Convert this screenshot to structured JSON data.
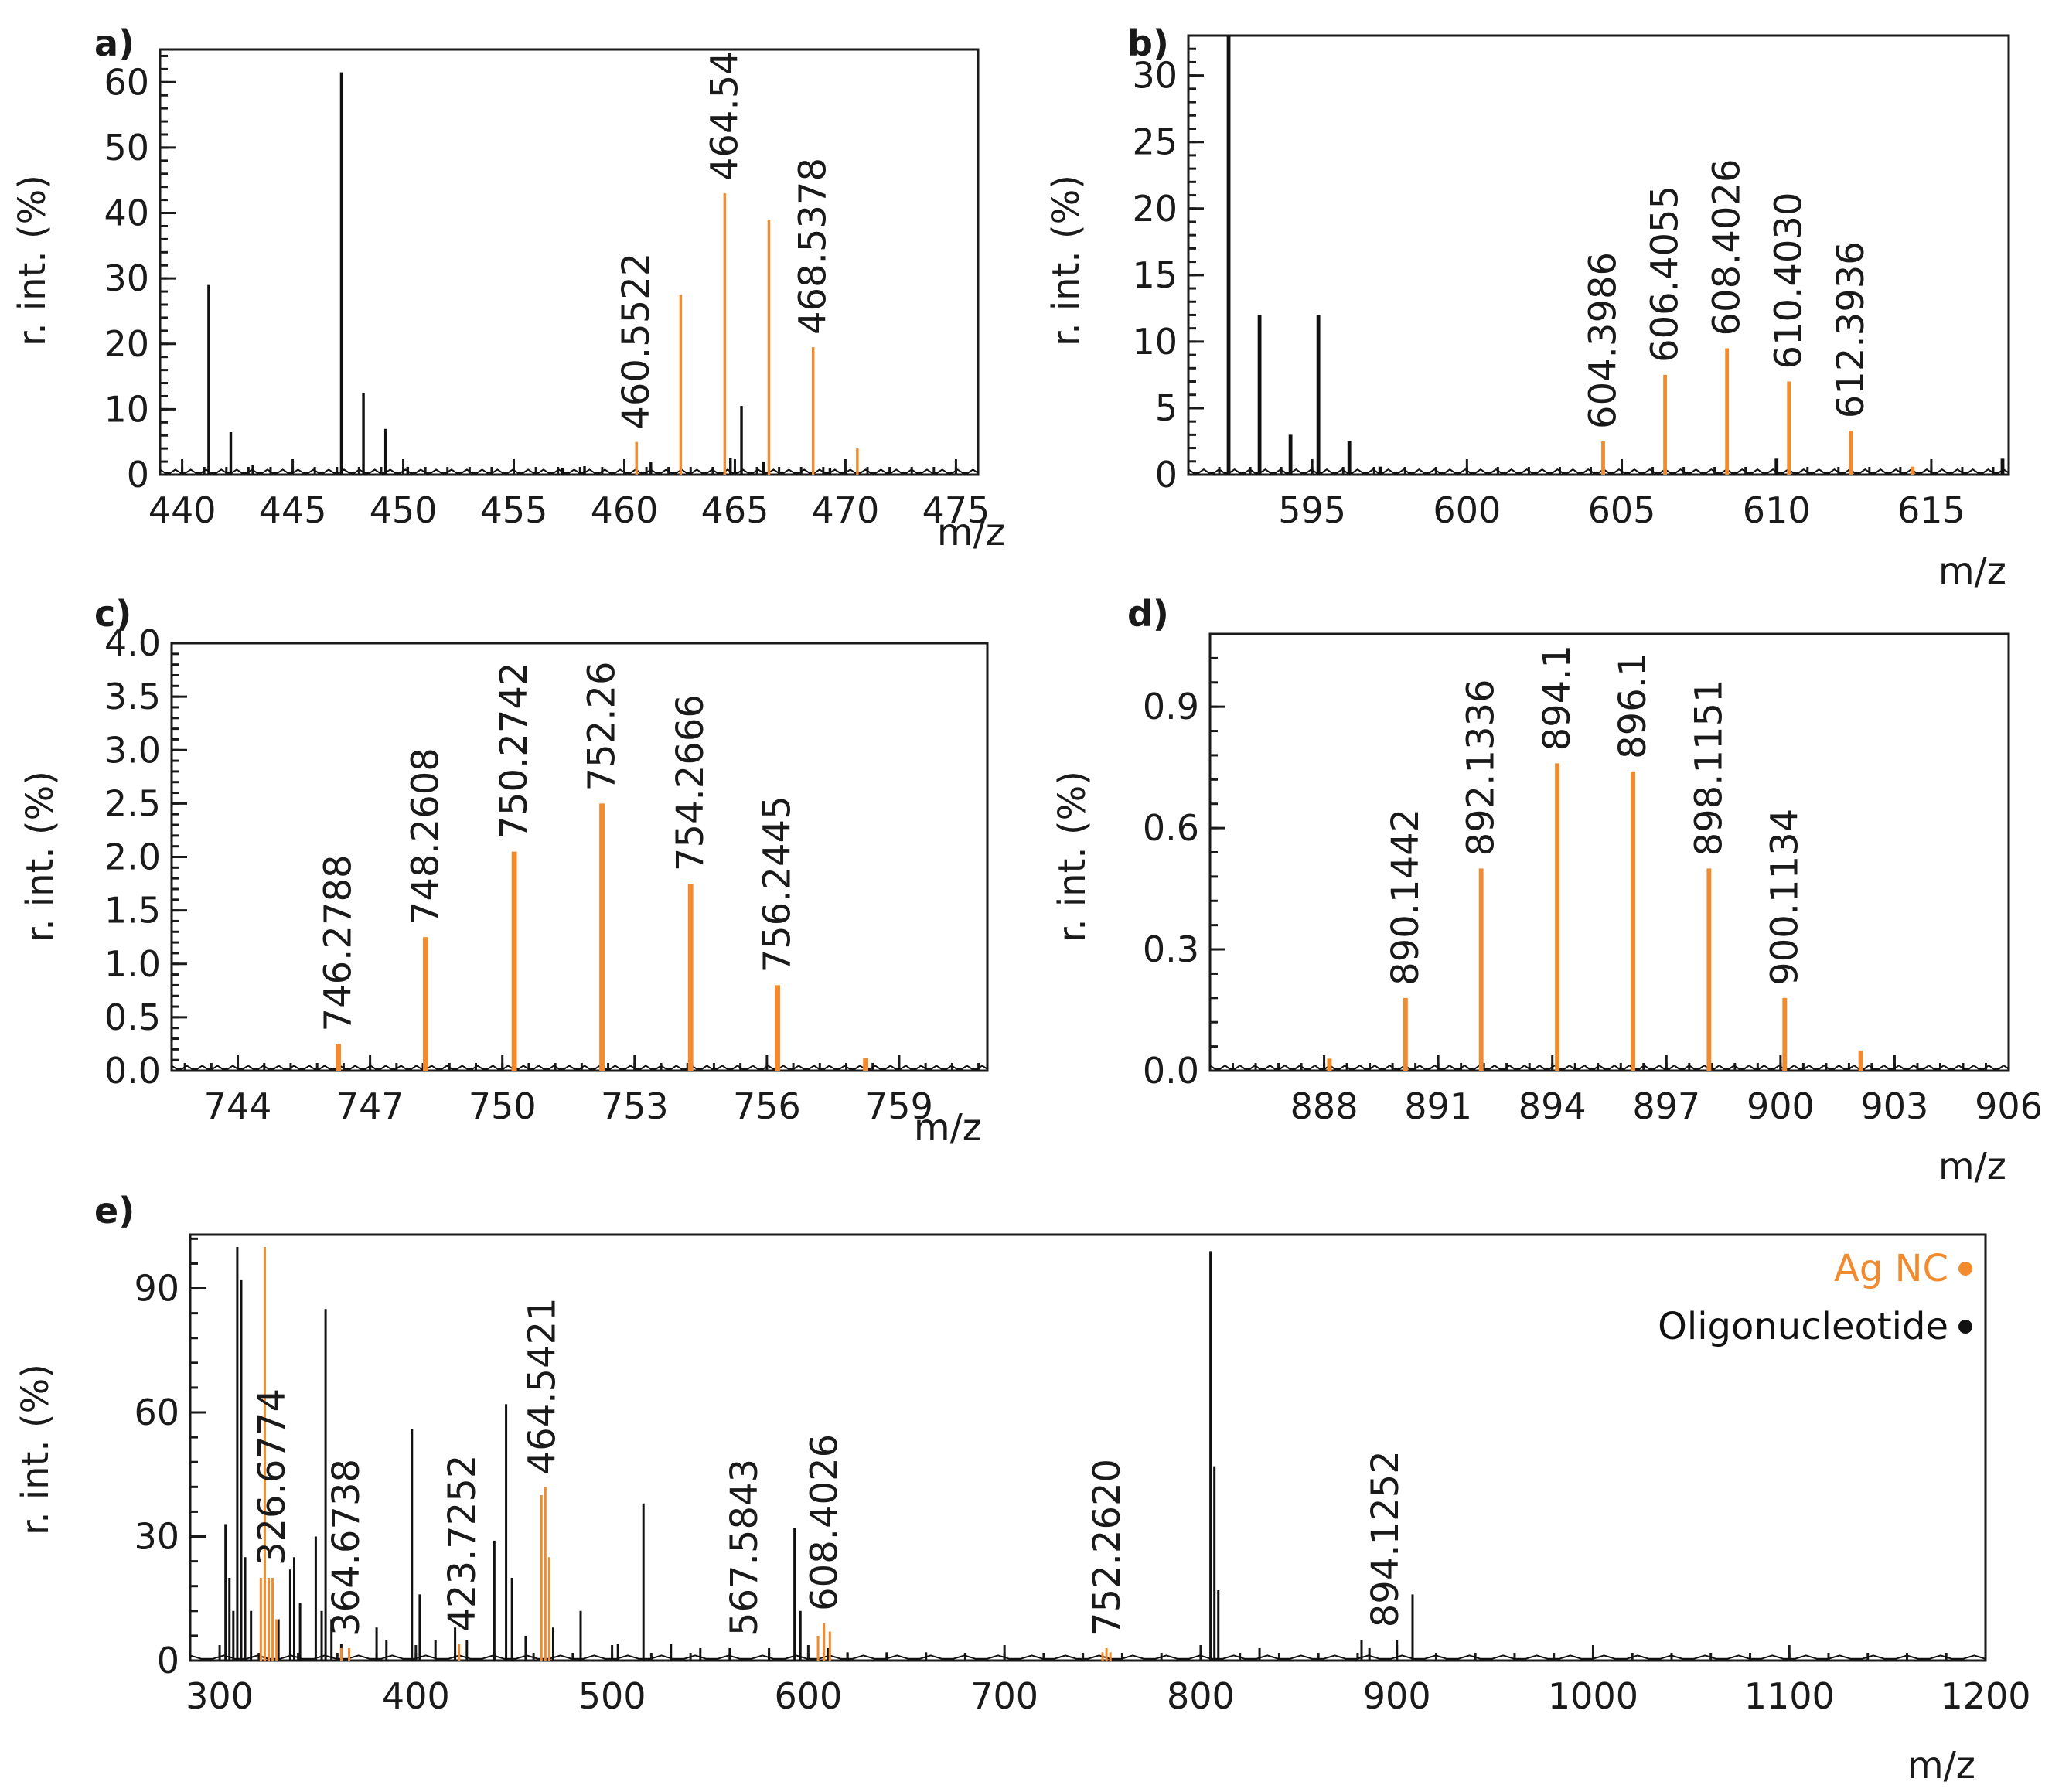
{
  "colors": {
    "ag": "#f28a2e",
    "oligo": "#111111",
    "axis": "#1a1a1a"
  },
  "chart_data": [
    {
      "type": "line",
      "panel_label": "a)",
      "ylabel": "r. int. (%)",
      "xlabel": "m/z",
      "xlim": [
        439,
        476
      ],
      "ylim": [
        0,
        65
      ],
      "xticks": [
        440,
        445,
        450,
        455,
        460,
        465,
        470,
        475
      ],
      "yticks": [
        0,
        10,
        20,
        30,
        40,
        50,
        60
      ],
      "series": [
        {
          "name": "Oligonucleotide",
          "color": "#111111",
          "peaks": [
            [
              441.2,
              29
            ],
            [
              442.2,
              6.5
            ],
            [
              443.2,
              1.5
            ],
            [
              447.2,
              61.5
            ],
            [
              448.2,
              12.5
            ],
            [
              449.2,
              7
            ],
            [
              450.2,
              1.2
            ],
            [
              457.2,
              1
            ],
            [
              458.2,
              1.3
            ],
            [
              461.2,
              2
            ],
            [
              464.8,
              2.5
            ],
            [
              465.3,
              10.5
            ],
            [
              466.3,
              2
            ],
            [
              469.3,
              1
            ]
          ]
        },
        {
          "name": "Ag NC",
          "color": "#f28a2e",
          "peaks": [
            [
              460.55,
              5
            ],
            [
              462.55,
              27.5
            ],
            [
              464.54,
              43
            ],
            [
              466.54,
              39
            ],
            [
              468.54,
              19.5
            ],
            [
              470.54,
              4
            ]
          ]
        }
      ],
      "peak_labels": [
        {
          "text": "460.5522",
          "x": 460.55,
          "y": 5
        },
        {
          "text": "464.54",
          "x": 464.54,
          "y": 43
        },
        {
          "text": "468.5378",
          "x": 468.54,
          "y": 19.5
        }
      ]
    },
    {
      "type": "line",
      "panel_label": "b)",
      "ylabel": "r. int. (%)",
      "xlabel": "m/z",
      "xlim": [
        591,
        617.5
      ],
      "ylim": [
        0,
        33
      ],
      "xticks": [
        595,
        600,
        605,
        610,
        615
      ],
      "yticks": [
        0,
        5,
        10,
        15,
        20,
        25,
        30
      ],
      "series": [
        {
          "name": "Oligonucleotide",
          "color": "#111111",
          "peaks": [
            [
              592.3,
              33
            ],
            [
              593.3,
              12
            ],
            [
              594.3,
              3
            ],
            [
              595.2,
              12
            ],
            [
              596.2,
              2.5
            ],
            [
              597.2,
              0.6
            ],
            [
              610.0,
              1.2
            ],
            [
              617.3,
              1.2
            ]
          ]
        },
        {
          "name": "Ag NC",
          "color": "#f28a2e",
          "peaks": [
            [
              604.4,
              2.5
            ],
            [
              606.4,
              7.5
            ],
            [
              608.4,
              9.5
            ],
            [
              610.4,
              7
            ],
            [
              612.4,
              3.3
            ],
            [
              614.4,
              0.6
            ]
          ]
        }
      ],
      "peak_labels": [
        {
          "text": "604.3986",
          "x": 604.4,
          "y": 2.5
        },
        {
          "text": "606.4055",
          "x": 606.4,
          "y": 7.5
        },
        {
          "text": "608.4026",
          "x": 608.4,
          "y": 9.5
        },
        {
          "text": "610.4030",
          "x": 610.4,
          "y": 7
        },
        {
          "text": "612.3936",
          "x": 612.4,
          "y": 3.3
        }
      ]
    },
    {
      "type": "line",
      "panel_label": "c)",
      "ylabel": "r. int. (%)",
      "xlabel": "m/z",
      "xlim": [
        742.5,
        761
      ],
      "ylim": [
        0,
        4.0
      ],
      "xticks": [
        744,
        747,
        750,
        753,
        756,
        759
      ],
      "yticks": [
        0.0,
        0.5,
        1.0,
        1.5,
        2.0,
        2.5,
        3.0,
        3.5,
        4.0
      ],
      "ytick_labels": [
        "0.0",
        "0.5",
        "1.0",
        "1.5",
        "2.0",
        "2.5",
        "3.0",
        "3.5",
        "4.0"
      ],
      "series": [
        {
          "name": "Ag NC",
          "color": "#f28a2e",
          "peaks": [
            [
              746.28,
              0.25
            ],
            [
              748.26,
              1.25
            ],
            [
              750.27,
              2.05
            ],
            [
              752.26,
              2.5
            ],
            [
              754.27,
              1.75
            ],
            [
              756.24,
              0.8
            ],
            [
              758.24,
              0.12
            ]
          ]
        }
      ],
      "peak_labels": [
        {
          "text": "746.2788",
          "x": 746.28,
          "y": 0.25
        },
        {
          "text": "748.2608",
          "x": 748.26,
          "y": 1.25
        },
        {
          "text": "750.2742",
          "x": 750.27,
          "y": 2.05
        },
        {
          "text": "752.26",
          "x": 752.26,
          "y": 2.5
        },
        {
          "text": "754.2666",
          "x": 754.27,
          "y": 1.75
        },
        {
          "text": "756.2445",
          "x": 756.24,
          "y": 0.8
        }
      ]
    },
    {
      "type": "line",
      "panel_label": "d)",
      "ylabel": "r. int. (%)",
      "xlabel": "m/z",
      "xlim": [
        885,
        906
      ],
      "ylim": [
        0,
        1.08
      ],
      "xticks": [
        888,
        891,
        894,
        897,
        900,
        903,
        906
      ],
      "yticks": [
        0.0,
        0.3,
        0.6,
        0.9
      ],
      "ytick_labels": [
        "0.0",
        "0.3",
        "0.6",
        "0.9"
      ],
      "series": [
        {
          "name": "Ag NC",
          "color": "#f28a2e",
          "peaks": [
            [
              888.14,
              0.03
            ],
            [
              890.14,
              0.18
            ],
            [
              892.13,
              0.5
            ],
            [
              894.13,
              0.76
            ],
            [
              896.12,
              0.74
            ],
            [
              898.12,
              0.5
            ],
            [
              900.11,
              0.18
            ],
            [
              902.11,
              0.05
            ]
          ]
        }
      ],
      "peak_labels": [
        {
          "text": "890.1442",
          "x": 890.14,
          "y": 0.18
        },
        {
          "text": "892.1336",
          "x": 892.13,
          "y": 0.5
        },
        {
          "text": "894.1",
          "x": 894.13,
          "y": 0.76
        },
        {
          "text": "896.1",
          "x": 896.12,
          "y": 0.74
        },
        {
          "text": "898.1151",
          "x": 898.12,
          "y": 0.5
        },
        {
          "text": "900.1134",
          "x": 900.11,
          "y": 0.18
        }
      ]
    },
    {
      "type": "line",
      "panel_label": "e)",
      "ylabel": "r. int. (%)",
      "xlabel": "m/z",
      "xlim": [
        285,
        1200
      ],
      "ylim": [
        0,
        103
      ],
      "xticks": [
        300,
        400,
        500,
        600,
        700,
        800,
        900,
        1000,
        1100,
        1200
      ],
      "yticks": [
        0,
        30,
        60,
        90
      ],
      "legend": {
        "position": "top-right",
        "entries": [
          {
            "label": "Ag NC",
            "color": "#f28a2e"
          },
          {
            "label": "Oligonucleotide",
            "color": "#111111"
          }
        ]
      },
      "series": [
        {
          "name": "Oligonucleotide",
          "color": "#111111",
          "peaks": [
            [
              303,
              33
            ],
            [
              305,
              20
            ],
            [
              307,
              12
            ],
            [
              309,
              100
            ],
            [
              311,
              92
            ],
            [
              313,
              25
            ],
            [
              316,
              12
            ],
            [
              330,
              10
            ],
            [
              336,
              22
            ],
            [
              338,
              25
            ],
            [
              341,
              14
            ],
            [
              349,
              30
            ],
            [
              352,
              12
            ],
            [
              354,
              85
            ],
            [
              357,
              10
            ],
            [
              362,
              4
            ],
            [
              380,
              8
            ],
            [
              385,
              5
            ],
            [
              398,
              56
            ],
            [
              402,
              16
            ],
            [
              410,
              5
            ],
            [
              420,
              8
            ],
            [
              426,
              5
            ],
            [
              440,
              29
            ],
            [
              446,
              62
            ],
            [
              449,
              20
            ],
            [
              456,
              6
            ],
            [
              470,
              8
            ],
            [
              484,
              12
            ],
            [
              503,
              4
            ],
            [
              516,
              38
            ],
            [
              530,
              4
            ],
            [
              545,
              3
            ],
            [
              560,
              3
            ],
            [
              580,
              3
            ],
            [
              593,
              32
            ],
            [
              596,
              12
            ],
            [
              610,
              3
            ],
            [
              620,
              2
            ],
            [
              640,
              2
            ],
            [
              660,
              2
            ],
            [
              805,
              99
            ],
            [
              807,
              47
            ],
            [
              809,
              17
            ],
            [
              830,
              3
            ],
            [
              882,
              5
            ],
            [
              886,
              3
            ],
            [
              900,
              5
            ],
            [
              908,
              16
            ]
          ]
        },
        {
          "name": "Ag NC",
          "color": "#f28a2e",
          "peaks": [
            [
              321,
              20
            ],
            [
              323,
              100
            ],
            [
              325,
              20
            ],
            [
              327,
              20
            ],
            [
              329,
              10
            ],
            [
              362,
              3
            ],
            [
              366,
              3
            ],
            [
              422,
              4
            ],
            [
              464,
              40
            ],
            [
              466,
              42
            ],
            [
              468,
              25
            ],
            [
              605,
              6
            ],
            [
              608,
              9
            ],
            [
              611,
              7
            ],
            [
              750,
              2
            ],
            [
              752,
              3
            ],
            [
              754,
              2
            ]
          ]
        }
      ],
      "peak_labels": [
        {
          "text": "326.6774",
          "x": 326.68,
          "y": 20
        },
        {
          "text": "364.6738",
          "x": 364.67,
          "y": 3
        },
        {
          "text": "423.7252",
          "x": 423.73,
          "y": 4
        },
        {
          "text": "464.5421",
          "x": 464.54,
          "y": 42
        },
        {
          "text": "567.5843",
          "x": 567.58,
          "y": 3
        },
        {
          "text": "608.4026",
          "x": 608.4,
          "y": 9
        },
        {
          "text": "752.2620",
          "x": 752.26,
          "y": 3
        },
        {
          "text": "894.1252",
          "x": 894.13,
          "y": 5
        }
      ]
    }
  ]
}
